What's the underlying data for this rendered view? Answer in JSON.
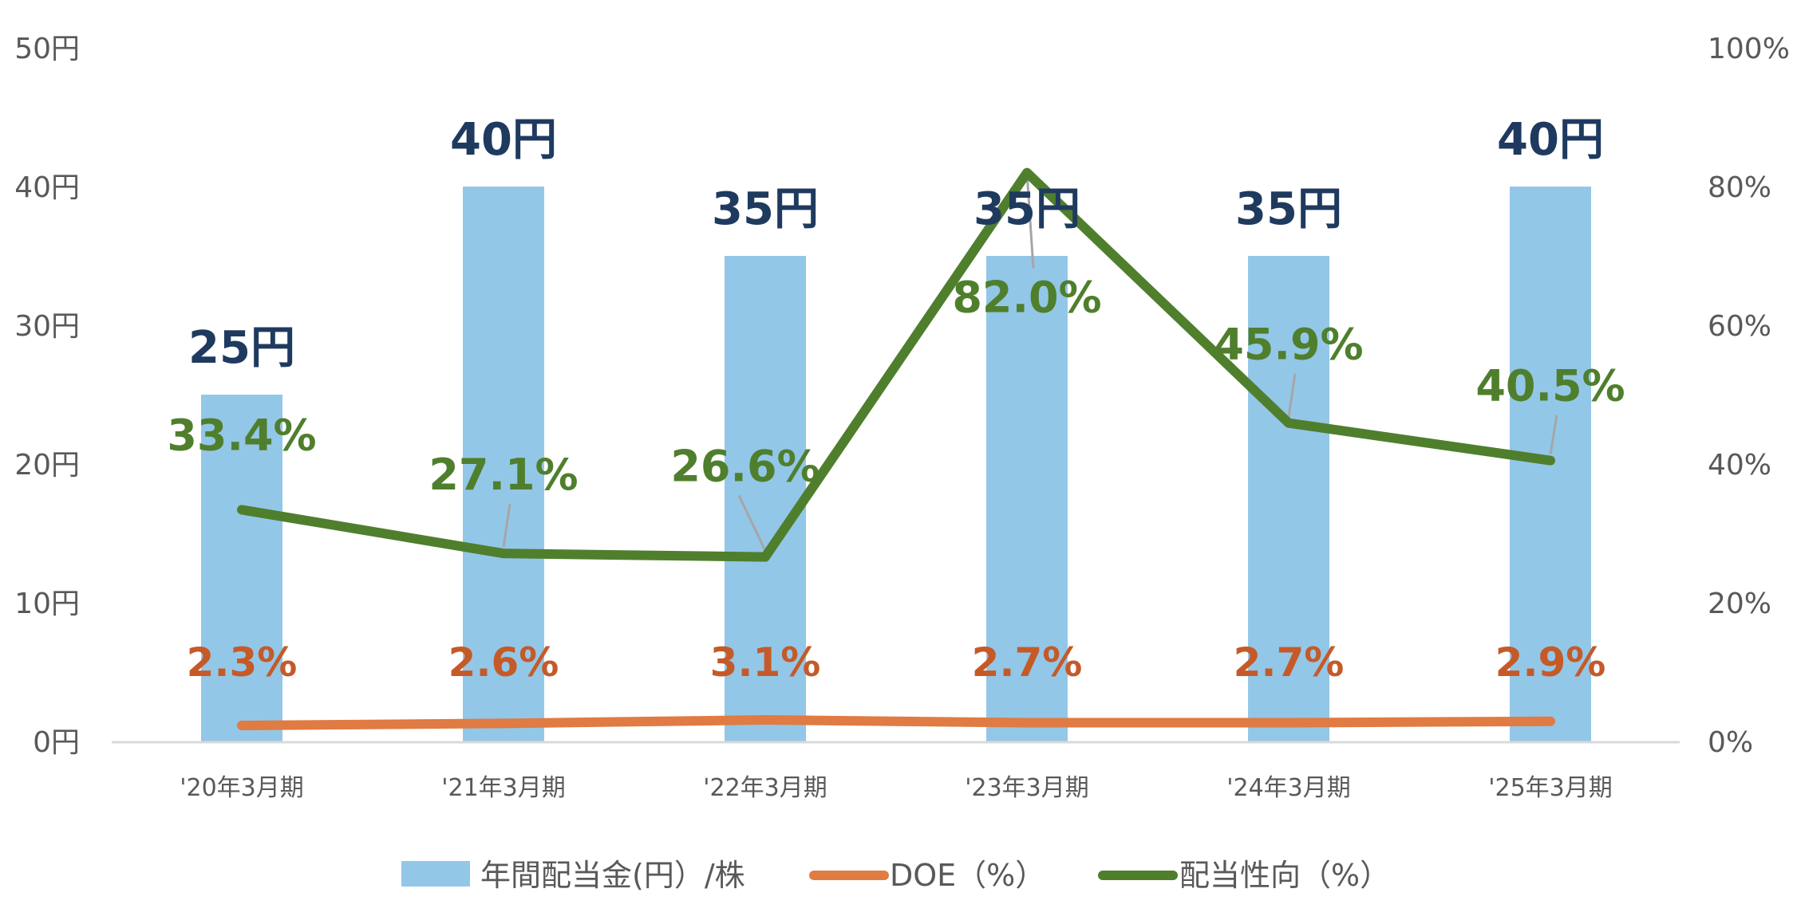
{
  "chart_data": {
    "type": "bar",
    "categories": [
      "'20年3月期",
      "'21年3月期",
      "'22年3月期",
      "'23年3月期",
      "'24年3月期",
      "'25年3月期"
    ],
    "series": [
      {
        "name": "年間配当金(円）/株",
        "type": "bar",
        "axis": "left",
        "color": "#93c7e7",
        "values": [
          25,
          40,
          35,
          35,
          35,
          40
        ],
        "labels": [
          "25円",
          "40円",
          "35円",
          "35円",
          "35円",
          "40円"
        ]
      },
      {
        "name": "DOE（%）",
        "type": "line",
        "axis": "right",
        "color": "#e07b43",
        "values": [
          2.3,
          2.6,
          3.1,
          2.7,
          2.7,
          2.9
        ],
        "labels": [
          "2.3%",
          "2.6%",
          "3.1%",
          "2.7%",
          "2.7%",
          "2.9%"
        ]
      },
      {
        "name": "配当性向（%）",
        "type": "line",
        "axis": "right",
        "color": "#4f7f2d",
        "values": [
          33.4,
          27.1,
          26.6,
          82.0,
          45.9,
          40.5
        ],
        "labels": [
          "33.4%",
          "27.1%",
          "26.6%",
          "82.0%",
          "45.9%",
          "40.5%"
        ]
      }
    ],
    "y_left": {
      "ylim": [
        0,
        50
      ],
      "ticks": [
        "0円",
        "10円",
        "20円",
        "30円",
        "40円",
        "50円"
      ]
    },
    "y_right": {
      "ylim": [
        0,
        100
      ],
      "ticks": [
        "0%",
        "20%",
        "40%",
        "60%",
        "80%",
        "100%"
      ]
    },
    "grid": false,
    "legend_position": "bottom",
    "colors": {
      "bar_label": "#1f3a5f",
      "doe_label": "#c55a28",
      "payout_label": "#4f7f2d",
      "axis_text": "#595959",
      "axis_line": "#d9d9d9",
      "leader_line": "#a6a6a6"
    }
  }
}
